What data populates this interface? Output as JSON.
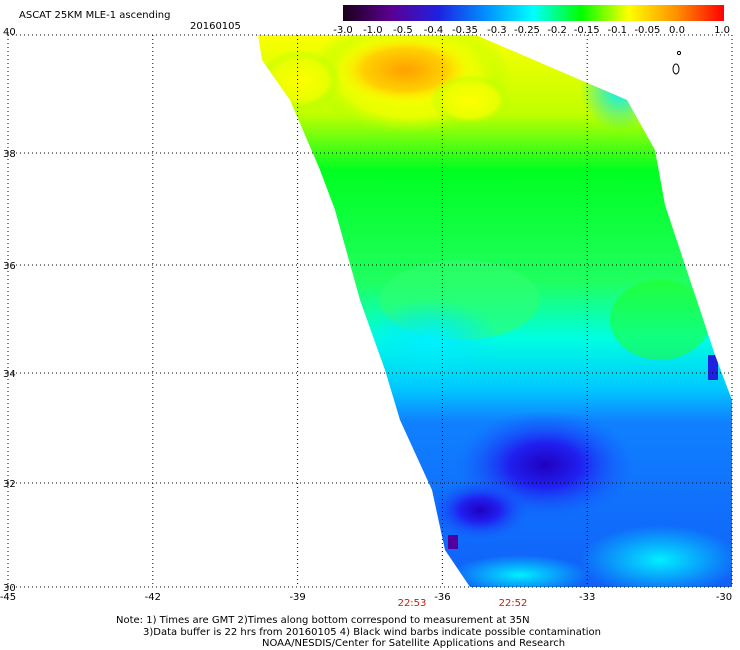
{
  "header": {
    "title": "ASCAT 25KM MLE-1 ascending",
    "date": "20160105"
  },
  "colorbar": {
    "stops": [
      "#1a001a",
      "#5a0090",
      "#2020e0",
      "#0090ff",
      "#00ffff",
      "#00ff00",
      "#ffff00",
      "#ff9000",
      "#ff0000"
    ],
    "ticks": [
      {
        "label": "-3.0",
        "frac": 0.0
      },
      {
        "label": "-1.0",
        "frac": 0.0783
      },
      {
        "label": "-0.5",
        "frac": 0.1573
      },
      {
        "label": "-0.4",
        "frac": 0.2376
      },
      {
        "label": "-0.35",
        "frac": 0.3201
      },
      {
        "label": "-0.3",
        "frac": 0.4039
      },
      {
        "label": "-0.25",
        "frac": 0.4829
      },
      {
        "label": "-0.2",
        "frac": 0.5619
      },
      {
        "label": "-0.15",
        "frac": 0.6396
      },
      {
        "label": "-0.1",
        "frac": 0.7199
      },
      {
        "label": "-0.05",
        "frac": 0.7989
      },
      {
        "label": "0.0",
        "frac": 0.8766
      },
      {
        "label": "1.0",
        "frac": 0.9948
      }
    ]
  },
  "map": {
    "lon_range": [
      -45,
      -30
    ],
    "lat_range": [
      30,
      40
    ],
    "lon_ticks": [
      "-45",
      "-42",
      "-39",
      "-36",
      "-33",
      "-30"
    ],
    "lat_ticks": [
      "40",
      "38",
      "36",
      "34",
      "32",
      "30"
    ],
    "grid": "dotted"
  },
  "times": [
    "22:53",
    "22:52"
  ],
  "notes": [
    "Note: 1) Times are GMT 2)Times along bottom correspond to measurement at 35N",
    "3)Data buffer is 22 hrs from 20160105 4) Black wind barbs indicate possible contamination",
    "NOAA/NESDIS/Center for Satellite Applications and Research"
  ]
}
